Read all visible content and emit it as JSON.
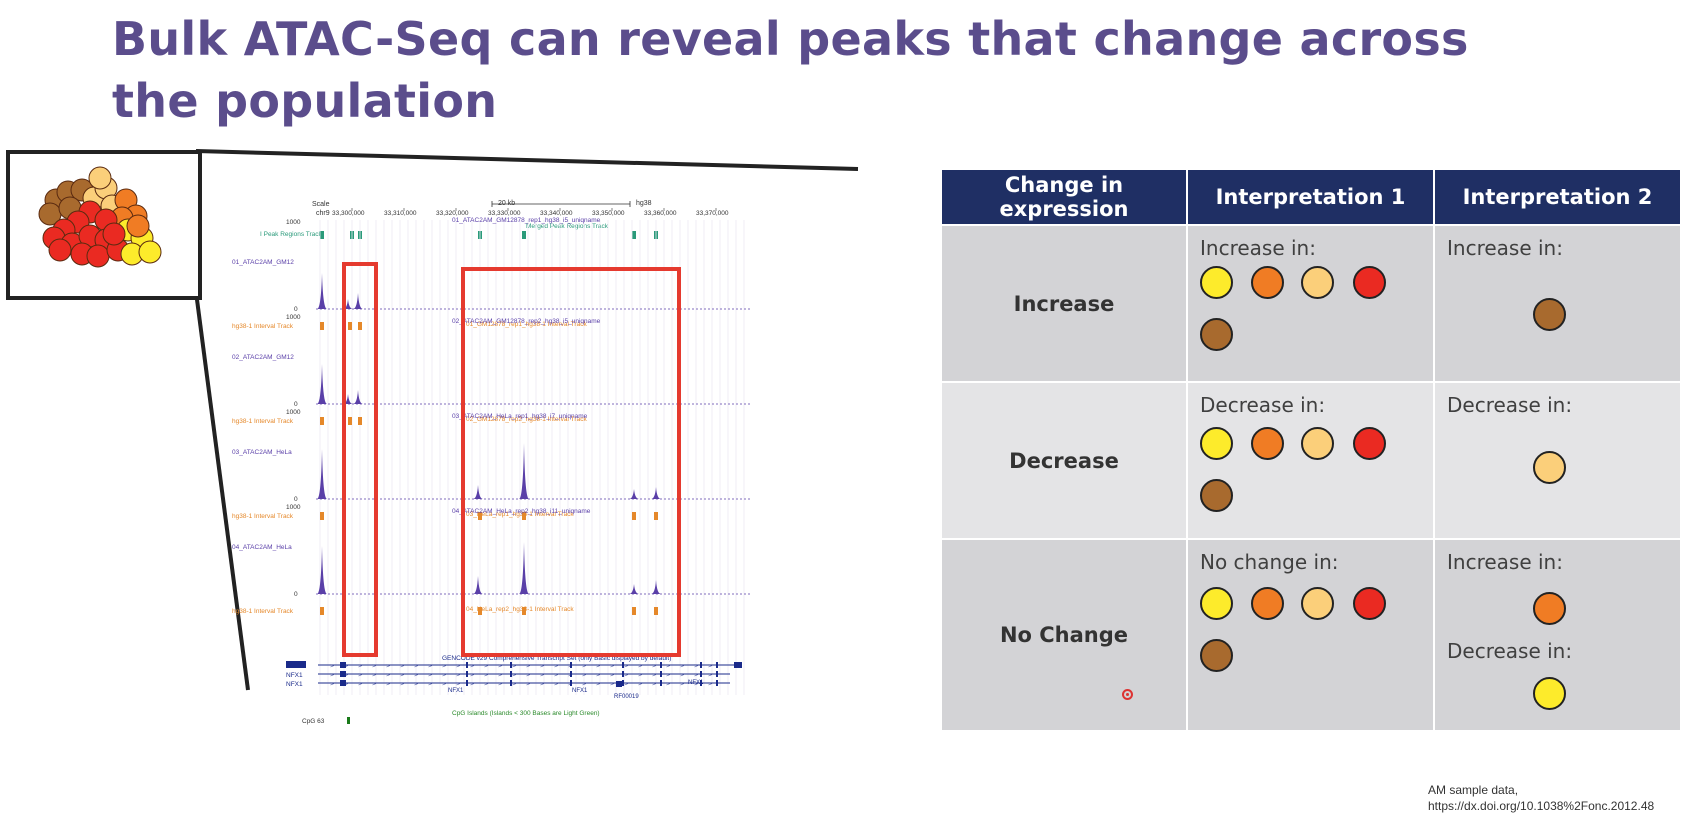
{
  "slide": {
    "title": "Bulk ATAC-Seq can reveal peaks that change across the population"
  },
  "table": {
    "headers": [
      "Change in expression",
      "Interpretation 1",
      "Interpretation 2"
    ],
    "rows": [
      {
        "label": "Increase",
        "interp1_label": "Increase in:",
        "interp1_dots": [
          "yellow",
          "orange",
          "light-orange",
          "red",
          "brown"
        ],
        "interp2_label": "Increase in:",
        "interp2_dots": [
          "brown"
        ]
      },
      {
        "label": "Decrease",
        "interp1_label": "Decrease in:",
        "interp1_dots": [
          "yellow",
          "orange",
          "light-orange",
          "red",
          "brown"
        ],
        "interp2_label": "Decrease in:",
        "interp2_dots": [
          "light-orange"
        ]
      },
      {
        "label": "No Change",
        "interp1_label": "No change in:",
        "interp1_dots": [
          "yellow",
          "orange",
          "light-orange",
          "red",
          "brown"
        ],
        "interp2_label_a": "Increase in:",
        "interp2_dots_a": [
          "orange"
        ],
        "interp2_label_b": "Decrease in:",
        "interp2_dots_b": [
          "yellow"
        ]
      }
    ]
  },
  "genome_browser": {
    "scale_label": "Scale",
    "chrom_label": "chr9",
    "scale_value": "20 kb",
    "assembly": "hg38",
    "coordinates": [
      "33,300,000",
      "33,310,000",
      "33,320,000",
      "33,330,000",
      "33,340,000",
      "33,350,000",
      "33,360,000",
      "33,370,000"
    ],
    "peak_track_label": "I Peak Regions Track",
    "peak_track_title": "Merged Peak Regions Track",
    "tracks": [
      {
        "side_label": "01_ATAC2AM_GM12",
        "title": "01_ATAC2AM_GM12878_rep1_hg38_i5_uniqname",
        "interval_label": "hg38-1 Interval Track",
        "interval_title": "01_GM12878_rep1_hg38-1 Interval Track"
      },
      {
        "side_label": "02_ATAC2AM_GM12",
        "title": "02_ATAC2AM_GM12878_rep2_hg38_i5_uniqname",
        "interval_label": "hg38-1 Interval Track",
        "interval_title": "02_GM12878_rep2_hg38-1 Interval Track"
      },
      {
        "side_label": "03_ATAC2AM_HeLa",
        "title": "03_ATAC2AM_HeLa_rep1_hg38_i7_uniqname",
        "interval_label": "hg38-1 Interval Track",
        "interval_title": "03_HeLa_rep1_hg38-1 Interval Track"
      },
      {
        "side_label": "04_ATAC2AM_HeLa",
        "title": "04_ATAC2AM_HeLa_rep2_hg38_i11_uniqname",
        "interval_label": "hg38-1 Interval Track",
        "interval_title": "04_HeLa_rep2_hg38-1 Interval Track"
      }
    ],
    "axis_max": "1000",
    "axis_min": "0",
    "gencode_label": "GENCODE v29 Comprehensive Transcript Set (only Basic displayed by default)",
    "gene_labels": [
      "NFX1",
      "NFX1",
      "NFX1"
    ],
    "gene_inline": [
      "NFX1",
      "NFX1",
      "NFX1",
      "RF00019"
    ],
    "cpg_label": "CpG 63",
    "cpg_title": "CpG Islands (Islands < 300 Bases are Light Green)"
  },
  "colors": {
    "title": "#5b4d8c",
    "table_header": "#1f2f64",
    "highlight_box": "#e53a2f",
    "signal": "#5a3fa8",
    "interval": "#e5882a"
  },
  "credit": {
    "line1": "AM sample data,",
    "line2": "https://dx.doi.org/10.1038%2Fonc.2012.48"
  }
}
